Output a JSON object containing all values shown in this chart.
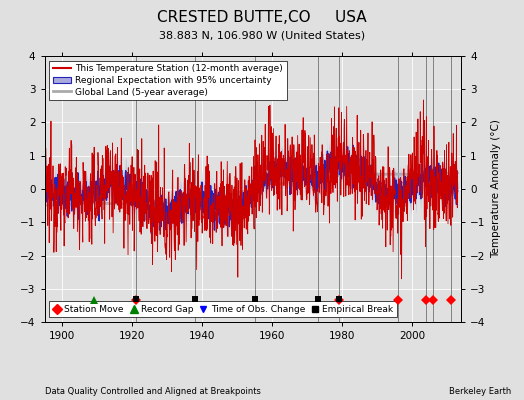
{
  "title": "CRESTED BUTTE,CO     USA",
  "subtitle": "38.883 N, 106.980 W (United States)",
  "xlabel_left": "Data Quality Controlled and Aligned at Breakpoints",
  "xlabel_right": "Berkeley Earth",
  "ylabel": "Temperature Anomaly (°C)",
  "ylim": [
    -4,
    4
  ],
  "xlim": [
    1895,
    2014
  ],
  "xticks": [
    1900,
    1920,
    1940,
    1960,
    1980,
    2000
  ],
  "yticks": [
    -4,
    -3,
    -2,
    -1,
    0,
    1,
    2,
    3,
    4
  ],
  "bg_color": "#e0e0e0",
  "plot_bg_color": "#e0e0e0",
  "station_move_years": [
    1921,
    1979,
    1996,
    2004,
    2006,
    2011
  ],
  "record_gap_years": [
    1909
  ],
  "time_obs_change_years": [
    1979
  ],
  "empirical_break_years": [
    1921,
    1938,
    1955,
    1973,
    1979
  ],
  "legend_labels": [
    "This Temperature Station (12-month average)",
    "Regional Expectation with 95% uncertainty",
    "Global Land (5-year average)"
  ],
  "bottom_legend_labels": [
    "Station Move",
    "Record Gap",
    "Time of Obs. Change",
    "Empirical Break"
  ],
  "station_line_color": "#cc0000",
  "regional_line_color": "#2222bb",
  "regional_fill_color": "#aaaadd",
  "global_line_color": "#aaaaaa",
  "vline_color": "#555555",
  "marker_y": -3.35,
  "grid_color": "#ffffff"
}
